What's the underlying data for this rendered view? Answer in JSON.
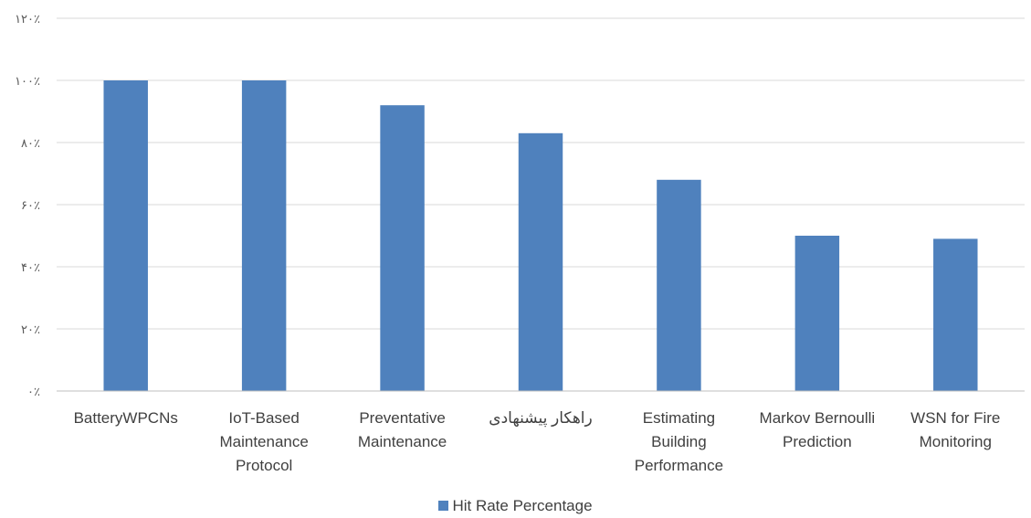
{
  "chart_data": {
    "type": "bar",
    "categories": [
      [
        "BatteryWPCNs"
      ],
      [
        "IoT-Based",
        "Maintenance",
        "Protocol"
      ],
      [
        "Preventative",
        "Maintenance"
      ],
      [
        "راهکار پیشنهادی"
      ],
      [
        "Estimating",
        "Building",
        "Performance"
      ],
      [
        "Markov Bernoulli",
        "Prediction"
      ],
      [
        "WSN for Fire",
        "Monitoring"
      ]
    ],
    "series": [
      {
        "name": "Hit Rate Percentage",
        "values": [
          100,
          100,
          92,
          83,
          68,
          50,
          49
        ]
      }
    ],
    "ylim": [
      0,
      120
    ],
    "yticks": [
      0,
      20,
      40,
      60,
      80,
      100,
      120
    ],
    "ytick_labels": [
      "۰٪",
      "۲۰٪",
      "۴۰٪",
      "۶۰٪",
      "۸۰٪",
      "۱۰۰٪",
      "۱۲۰٪"
    ],
    "grid": true,
    "legend": "bottom",
    "colors": {
      "bar": "#4f81bd",
      "grid": "#d9d9d9",
      "axis": "#bfbfbf"
    }
  }
}
